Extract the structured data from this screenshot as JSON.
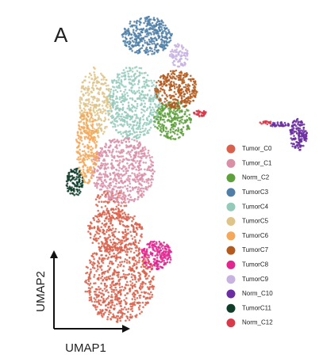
{
  "chart_data": {
    "type": "scatter",
    "panel_label": "A",
    "x_label": "UMAP1",
    "y_label": "UMAP2",
    "series": [
      {
        "name": "Tumor_C0",
        "color": "#d9604a"
      },
      {
        "name": "Tumor_C1",
        "color": "#d98fa6"
      },
      {
        "name": "Norm_C2",
        "color": "#5ea03c"
      },
      {
        "name": "TumorC3",
        "color": "#4f7fa7"
      },
      {
        "name": "TumorC4",
        "color": "#95cabb"
      },
      {
        "name": "TumorC5",
        "color": "#dfc48a"
      },
      {
        "name": "TumorC6",
        "color": "#f4a85a"
      },
      {
        "name": "TumorC7",
        "color": "#b35a1f"
      },
      {
        "name": "TumorC8",
        "color": "#e0268f"
      },
      {
        "name": "TumorC9",
        "color": "#c7b3e0"
      },
      {
        "name": "Norm_C10",
        "color": "#6a2ea0"
      },
      {
        "name": "TumorC11",
        "color": "#0f3d2a"
      },
      {
        "name": "Norm_C12",
        "color": "#d93a4a"
      }
    ]
  }
}
